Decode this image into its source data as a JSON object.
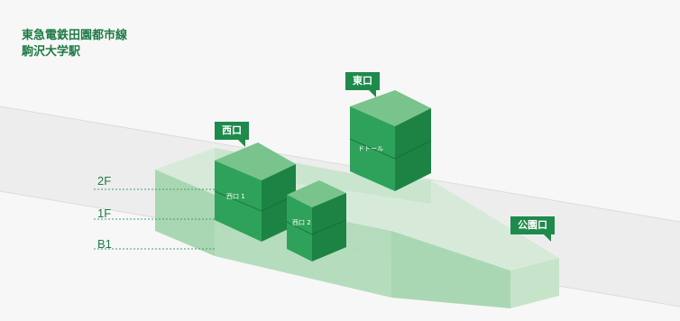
{
  "station": {
    "line": "東急電鉄田園都市線",
    "name": "駒沢大学駅"
  },
  "floors": [
    {
      "id": "2F",
      "label": "2F"
    },
    {
      "id": "1F",
      "label": "1F"
    },
    {
      "id": "B1",
      "label": "B1"
    }
  ],
  "exits": [
    {
      "id": "west",
      "label": "西口"
    },
    {
      "id": "east",
      "label": "東口"
    },
    {
      "id": "park",
      "label": "公園口"
    }
  ],
  "buildings": [
    {
      "id": "west-1",
      "label": "西口 1"
    },
    {
      "id": "west-2",
      "label": "西口 2"
    },
    {
      "id": "doutor",
      "label": "ドトール"
    }
  ],
  "colors": {
    "brand_green": "#1e8a4c",
    "text_green": "#1e7a46",
    "building_top": "#78c48c",
    "building_front": "#2ea25a",
    "building_side": "#1c8344",
    "station_top": "#d6ead8",
    "station_front": "#a6d6b0",
    "station_side": "#c4e4c8",
    "background": "#f7f7f7"
  }
}
